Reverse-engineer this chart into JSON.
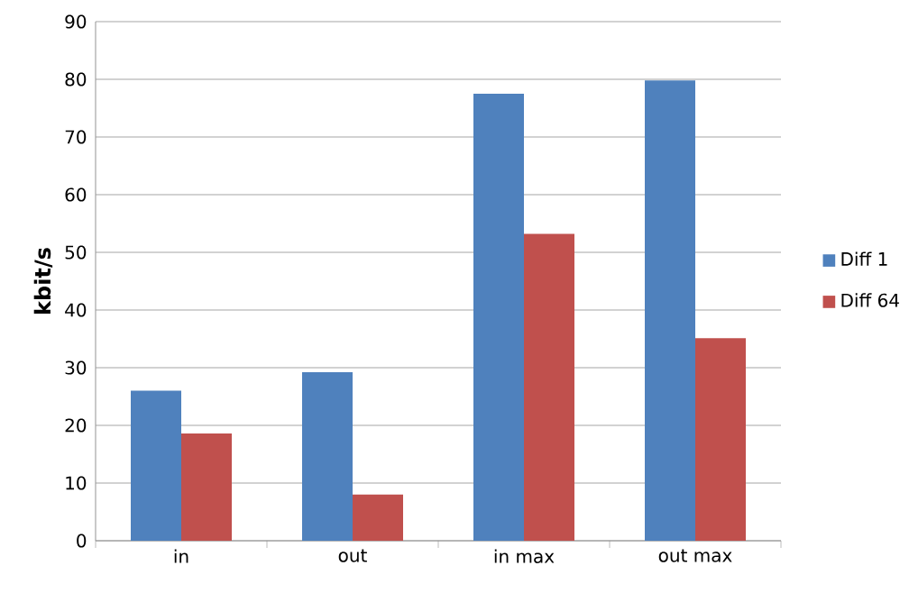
{
  "chart_data": {
    "type": "bar",
    "ylabel": "kbit/s",
    "categories": [
      "in",
      "out",
      "in max",
      "out max"
    ],
    "series": [
      {
        "name": "Diff 1",
        "color": "#4f81bd",
        "values": [
          26,
          29.2,
          77.5,
          79.8
        ]
      },
      {
        "name": "Diff 64",
        "color": "#c0504d",
        "values": [
          18.6,
          8,
          53.2,
          35.1
        ]
      }
    ],
    "ylim": [
      0,
      90
    ],
    "yticks": [
      0,
      10,
      20,
      30,
      40,
      50,
      60,
      70,
      80,
      90
    ],
    "grid": "y",
    "legend": "right"
  }
}
